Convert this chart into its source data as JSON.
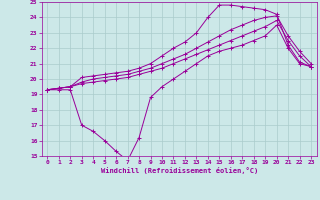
{
  "bg_color": "#cce8e8",
  "grid_color": "#aacccc",
  "line_color": "#990099",
  "xlabel": "Windchill (Refroidissement éolien,°C)",
  "xlim": [
    -0.5,
    23.5
  ],
  "ylim": [
    15,
    25
  ],
  "yticks": [
    15,
    16,
    17,
    18,
    19,
    20,
    21,
    22,
    23,
    24,
    25
  ],
  "xticks": [
    0,
    1,
    2,
    3,
    4,
    5,
    6,
    7,
    8,
    9,
    10,
    11,
    12,
    13,
    14,
    15,
    16,
    17,
    18,
    19,
    20,
    21,
    22,
    23
  ],
  "curve1_x": [
    0,
    1,
    2,
    3,
    4,
    5,
    6,
    7,
    8,
    9,
    10,
    11,
    12,
    13,
    14,
    15,
    16,
    17,
    18,
    19,
    20,
    21,
    22,
    23
  ],
  "curve1_y": [
    19.3,
    19.4,
    19.5,
    20.1,
    20.2,
    20.3,
    20.4,
    20.5,
    20.7,
    21.0,
    21.5,
    22.0,
    22.4,
    23.0,
    24.0,
    24.8,
    24.8,
    24.7,
    24.6,
    24.5,
    24.2,
    22.2,
    21.1,
    20.8
  ],
  "curve2_x": [
    0,
    1,
    2,
    3,
    4,
    5,
    6,
    7,
    8,
    9,
    10,
    11,
    12,
    13,
    14,
    15,
    16,
    17,
    18,
    19,
    20,
    21,
    22,
    23
  ],
  "curve2_y": [
    19.3,
    19.4,
    19.5,
    19.8,
    20.0,
    20.1,
    20.2,
    20.3,
    20.5,
    20.7,
    21.0,
    21.3,
    21.6,
    22.0,
    22.4,
    22.8,
    23.2,
    23.5,
    23.8,
    24.0,
    24.1,
    22.8,
    21.8,
    21.0
  ],
  "curve3_x": [
    0,
    1,
    2,
    3,
    4,
    5,
    6,
    7,
    8,
    9,
    10,
    11,
    12,
    13,
    14,
    15,
    16,
    17,
    18,
    19,
    20,
    21,
    22,
    23
  ],
  "curve3_y": [
    19.3,
    19.4,
    19.5,
    19.7,
    19.8,
    19.9,
    20.0,
    20.1,
    20.3,
    20.5,
    20.7,
    21.0,
    21.3,
    21.6,
    21.9,
    22.2,
    22.5,
    22.8,
    23.1,
    23.4,
    23.8,
    22.5,
    21.5,
    20.8
  ],
  "curve4_x": [
    0,
    1,
    2,
    3,
    4,
    5,
    6,
    7,
    8,
    9,
    10,
    11,
    12,
    13,
    14,
    15,
    16,
    17,
    18,
    19,
    20,
    21,
    22,
    23
  ],
  "curve4_y": [
    19.3,
    19.3,
    19.3,
    17.0,
    16.6,
    16.0,
    15.3,
    14.7,
    16.2,
    18.8,
    19.5,
    20.0,
    20.5,
    21.0,
    21.5,
    21.8,
    22.0,
    22.2,
    22.5,
    22.8,
    23.5,
    22.0,
    21.0,
    20.8
  ]
}
